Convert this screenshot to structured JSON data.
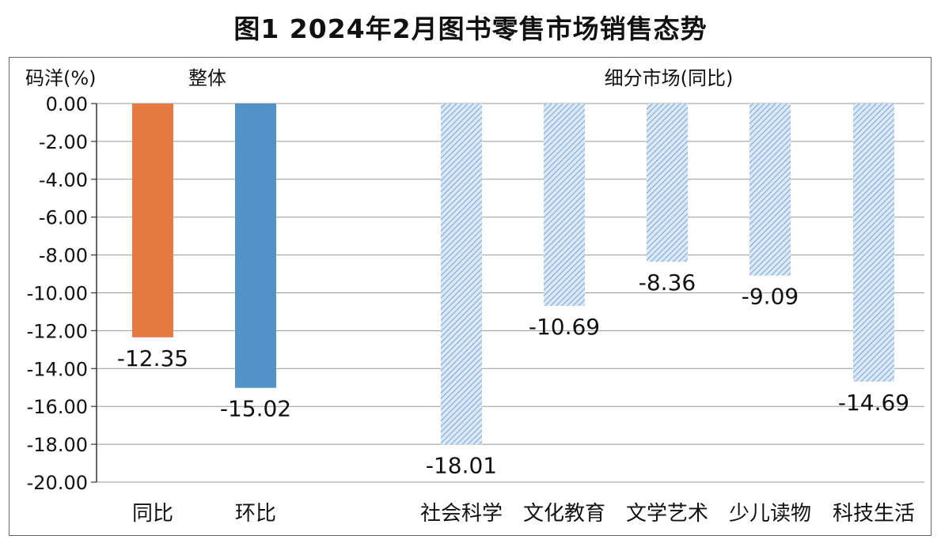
{
  "title": "图1 2024年2月图书零售市场销售态势",
  "colors": {
    "tongbi": "#e57a43",
    "huanbi": "#5392c6",
    "segment_hatch": "#7fa8d8",
    "segment_bg": "#dbe8f6",
    "grid": "#999999"
  },
  "chart_data": {
    "type": "bar",
    "ylabel": "码洋(%)",
    "ylim": [
      -20,
      0
    ],
    "yticks": [
      "0.00",
      "-2.00",
      "-4.00",
      "-6.00",
      "-8.00",
      "-10.00",
      "-12.00",
      "-14.00",
      "-16.00",
      "-18.00",
      "-20.00"
    ],
    "grid": true,
    "groups": [
      {
        "label": "整体",
        "categories": [
          "同比",
          "环比"
        ],
        "values": [
          -12.35,
          -15.02
        ],
        "value_labels": [
          "-12.35",
          "-15.02"
        ],
        "colors": [
          "#e57a43",
          "#5392c6"
        ]
      },
      {
        "label": "细分市场(同比)",
        "categories": [
          "社会科学",
          "文化教育",
          "文学艺术",
          "少儿读物",
          "科技生活"
        ],
        "values": [
          -18.01,
          -10.69,
          -8.36,
          -9.09,
          -14.69
        ],
        "value_labels": [
          "-18.01",
          "-10.69",
          "-8.36",
          "-9.09",
          "-14.69"
        ],
        "pattern": "hatched"
      }
    ]
  }
}
